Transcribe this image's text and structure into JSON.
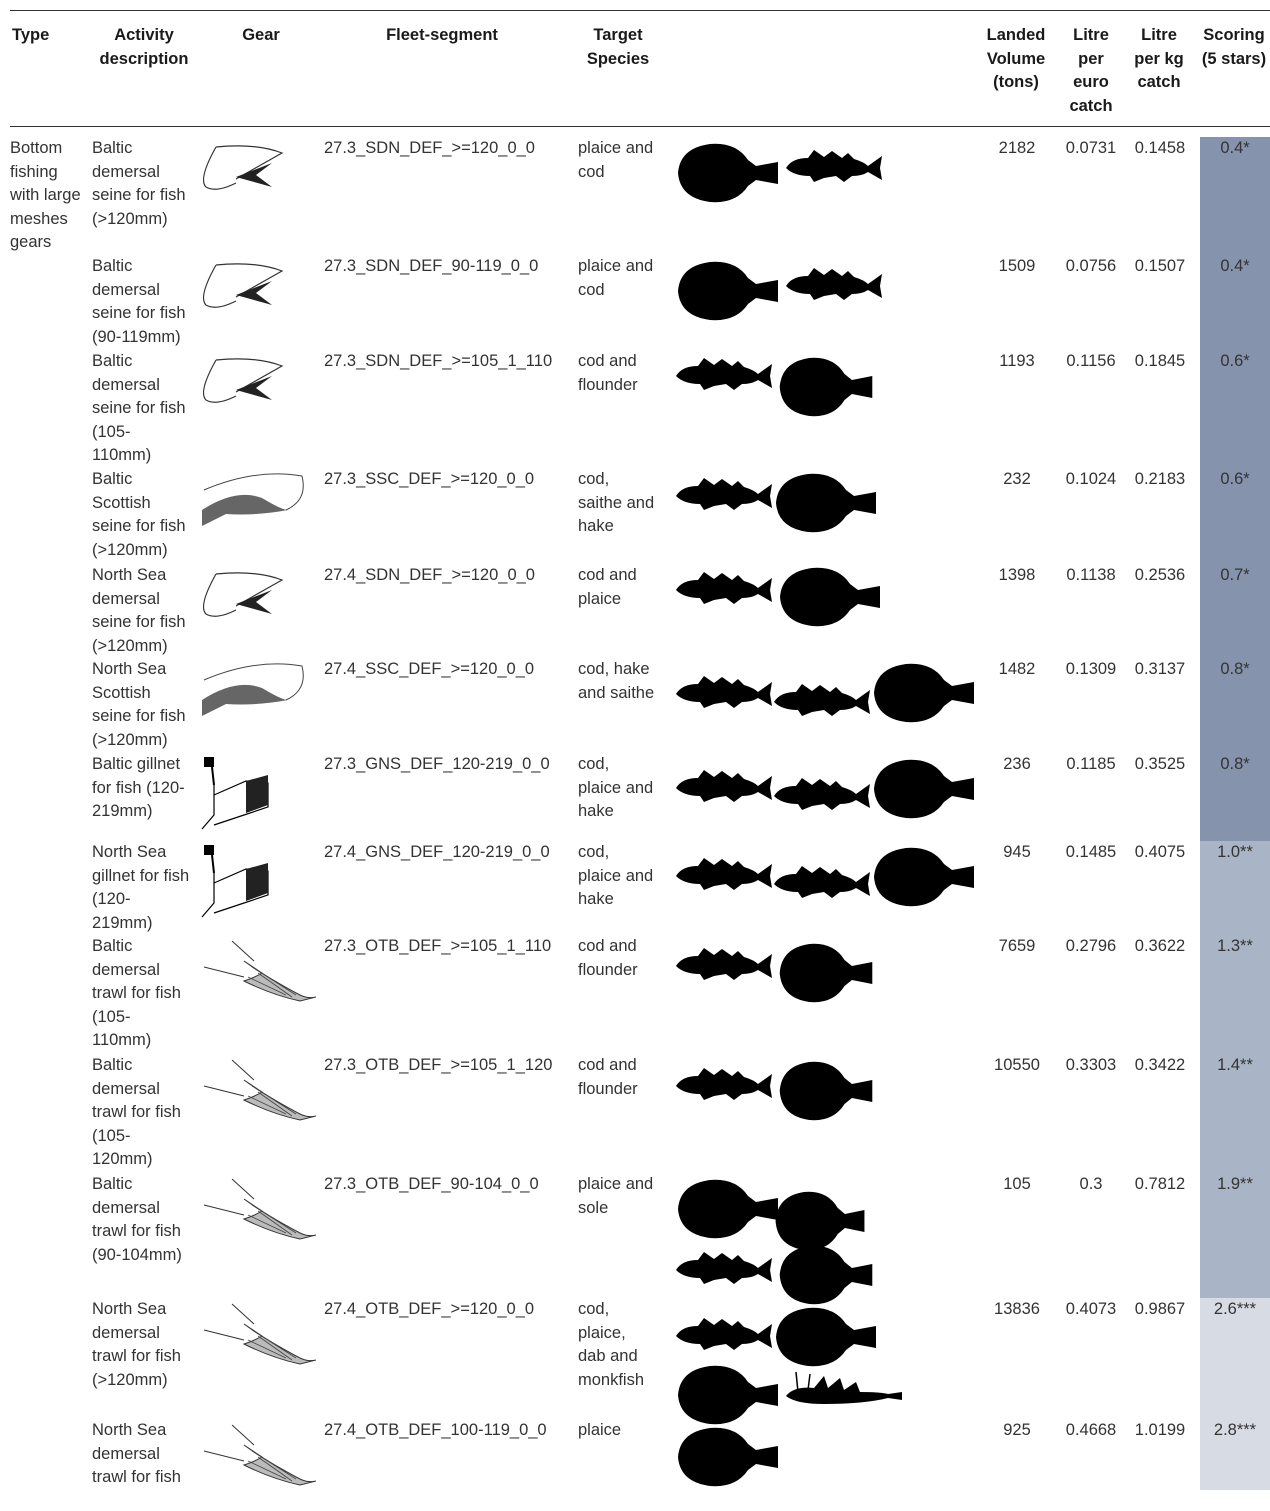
{
  "header": {
    "type": "Type",
    "activity": "Activity\ndescription",
    "gear": "Gear",
    "fleet": "Fleet-segment",
    "target": "Target\nSpecies",
    "landed": "Landed\nVolume\n(tons)",
    "litre_euro": "Litre\nper\neuro\ncatch",
    "litre_kg": "Litre\nper kg\ncatch",
    "scoring": "Scoring\n(5 stars)"
  },
  "type_label": "Bottom\nfishing\nwith large\nmeshes\ngears",
  "colors": {
    "score_dark": "#8593ad",
    "score_mid": "#a9b5c7",
    "score_light": "#d6dbe4"
  },
  "rows": [
    {
      "activity": "Baltic\ndemersal\nseine for fish\n(>120mm)",
      "gear": "seine-icon",
      "fleet": "27.3_SDN_DEF_>=120_0_0",
      "target": "plaice and\ncod",
      "fish": [
        "flatfish-icon",
        "cod-icon"
      ],
      "landed": "2182",
      "litre_euro": "0.0731",
      "litre_kg": "0.1458",
      "score": "0.4*",
      "score_value": 0.4
    },
    {
      "activity": "Baltic\ndemersal\nseine for fish\n(90-119mm)",
      "gear": "seine-icon",
      "fleet": "27.3_SDN_DEF_90-119_0_0",
      "target": "plaice and\ncod",
      "fish": [
        "flatfish-icon",
        "cod-icon"
      ],
      "landed": "1509",
      "litre_euro": "0.0756",
      "litre_kg": "0.1507",
      "score": "0.4*",
      "score_value": 0.4
    },
    {
      "activity": "Baltic\ndemersal\nseine for fish\n(105-\n110mm)",
      "gear": "seine-icon",
      "fleet": "27.3_SDN_DEF_>=105_1_110",
      "target": "cod and\nflounder",
      "fish": [
        "cod-icon",
        "flounder-icon"
      ],
      "landed": "1193",
      "litre_euro": "0.1156",
      "litre_kg": "0.1845",
      "score": "0.6*",
      "score_value": 0.6
    },
    {
      "activity": "Baltic\nScottish\nseine for fish\n(>120mm)",
      "gear": "scottish-seine-icon",
      "fleet": "27.3_SSC_DEF_>=120_0_0",
      "target": "cod,\nsaithe and\nhake",
      "fish": [
        "cod-icon",
        "flatfish-icon"
      ],
      "landed": "232",
      "litre_euro": "0.1024",
      "litre_kg": "0.2183",
      "score": "0.6*",
      "score_value": 0.6
    },
    {
      "activity": "North Sea\ndemersal\nseine for fish\n(>120mm)",
      "gear": "seine-icon",
      "fleet": "27.4_SDN_DEF_>=120_0_0",
      "target": "cod and\nplaice",
      "fish": [
        "cod-icon",
        "flatfish-icon"
      ],
      "landed": "1398",
      "litre_euro": "0.1138",
      "litre_kg": "0.2536",
      "score": "0.7*",
      "score_value": 0.7
    },
    {
      "activity": "North Sea\nScottish\nseine for fish\n(>120mm)",
      "gear": "scottish-seine-icon",
      "fleet": "27.4_SSC_DEF_>=120_0_0",
      "target": "cod, hake\nand saithe",
      "fish": [
        "cod-icon",
        "hake-icon",
        "flatfish-icon"
      ],
      "landed": "1482",
      "litre_euro": "0.1309",
      "litre_kg": "0.3137",
      "score": "0.8*",
      "score_value": 0.8
    },
    {
      "activity": "Baltic gillnet\nfor fish (120-\n219mm)",
      "gear": "gillnet-icon",
      "fleet": "27.3_GNS_DEF_120-219_0_0",
      "target": "cod,\nplaice and\nhake",
      "fish": [
        "cod-icon",
        "hake-icon",
        "flatfish-icon"
      ],
      "landed": "236",
      "litre_euro": "0.1185",
      "litre_kg": "0.3525",
      "score": "0.8*",
      "score_value": 0.8
    },
    {
      "activity": "North Sea\ngillnet for fish\n(120-\n219mm)",
      "gear": "gillnet-icon",
      "fleet": "27.4_GNS_DEF_120-219_0_0",
      "target": "cod,\nplaice and\nhake",
      "fish": [
        "cod-icon",
        "hake-icon",
        "flatfish-icon"
      ],
      "landed": "945",
      "litre_euro": "0.1485",
      "litre_kg": "0.4075",
      "score": "1.0**",
      "score_value": 1.0
    },
    {
      "activity": "Baltic\ndemersal\ntrawl for fish\n(105-\n110mm)",
      "gear": "trawl-icon",
      "fleet": "27.3_OTB_DEF_>=105_1_110",
      "target": "cod and\nflounder",
      "fish": [
        "cod-icon",
        "flounder-icon"
      ],
      "landed": "7659",
      "litre_euro": "0.2796",
      "litre_kg": "0.3622",
      "score": "1.3**",
      "score_value": 1.3
    },
    {
      "activity": "Baltic\ndemersal\ntrawl for fish\n(105-\n120mm)",
      "gear": "trawl-icon",
      "fleet": "27.3_OTB_DEF_>=105_1_120",
      "target": "cod and\nflounder",
      "fish": [
        "cod-icon",
        "flounder-icon"
      ],
      "landed": "10550",
      "litre_euro": "0.3303",
      "litre_kg": "0.3422",
      "score": "1.4**",
      "score_value": 1.4
    },
    {
      "activity": "Baltic\ndemersal\ntrawl for fish\n(90-104mm)",
      "gear": "trawl-icon",
      "fleet": "27.3_OTB_DEF_90-104_0_0",
      "target": "plaice and\nsole",
      "fish": [
        "flatfish-icon",
        "sole-icon",
        "cod-icon",
        "flounder-icon"
      ],
      "landed": "105",
      "litre_euro": "0.3",
      "litre_kg": "0.7812",
      "score": "1.9**",
      "score_value": 1.9
    },
    {
      "activity": "North Sea\ndemersal\ntrawl for fish\n(>120mm)",
      "gear": "trawl-icon",
      "fleet": "27.4_OTB_DEF_>=120_0_0",
      "target": "cod,\nplaice,\ndab and\nmonkfish",
      "fish": [
        "cod-icon",
        "flatfish-icon",
        "flatfish-icon",
        "monkfish-icon"
      ],
      "landed": "13836",
      "litre_euro": "0.4073",
      "litre_kg": "0.9867",
      "score": "2.6***",
      "score_value": 2.6
    },
    {
      "activity": "North Sea\ndemersal\ntrawl for fish",
      "gear": "trawl-icon",
      "fleet": "27.4_OTB_DEF_100-119_0_0",
      "target": "plaice",
      "fish": [
        "flatfish-icon"
      ],
      "landed": "925",
      "litre_euro": "0.4668",
      "litre_kg": "1.0199",
      "score": "2.8***",
      "score_value": 2.8
    }
  ]
}
